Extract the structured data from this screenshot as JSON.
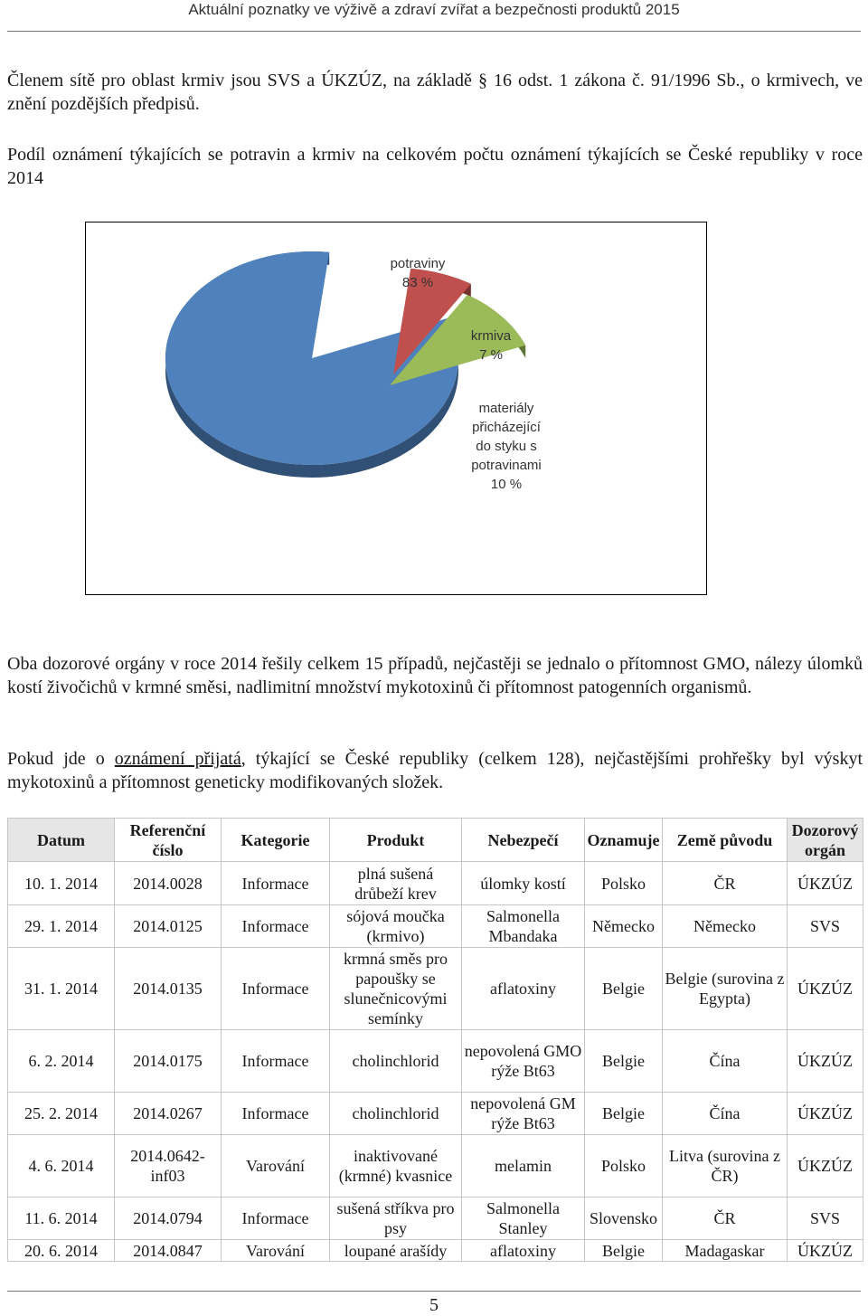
{
  "header": {
    "title": "Aktuální poznatky ve výživě a zdraví zvířat a bezpečnosti produktů 2015"
  },
  "intro": {
    "text": "Členem sítě pro oblast krmiv jsou SVS a ÚKZÚZ, na základě § 16 odst. 1 zákona č. 91/1996 Sb., o krmivech, ve znění pozdějších předpisů."
  },
  "chart_heading": {
    "text": "Podíl oznámení týkajících se potravin a krmiv na celkovém počtu oznámení týkajících se České republiky v roce 2014"
  },
  "chart_data": {
    "type": "pie",
    "title": "",
    "slices": [
      {
        "label_lines": [
          "potraviny",
          "83 %"
        ],
        "value": 83,
        "color": "#4f81bd"
      },
      {
        "label_lines": [
          "krmiva",
          "7 %"
        ],
        "value": 7,
        "color": "#c0504d"
      },
      {
        "label_lines": [
          "materiály",
          "přicházející",
          "do styku s",
          "potravinami",
          "10 %"
        ],
        "value": 10,
        "color": "#9bbb59"
      }
    ]
  },
  "para2": {
    "text": "Oba dozorové orgány v roce 2014 řešily celkem 15 případů, nejčastěji se jednalo o přítomnost GMO, nálezy úlomků kostí živočichů v krmné směsi, nadlimitní množství mykotoxinů či přítomnost patogenních organismů."
  },
  "para3": {
    "before": "Pokud jde o ",
    "underlined": "oznámení přijatá",
    "after": ", týkající se České republiky (celkem 128), nejčastějšími prohřešky byl výskyt mykotoxinů a přítomnost geneticky modifikovaných složek."
  },
  "table": {
    "headers": [
      "Datum",
      "Referenční číslo",
      "Kategorie",
      "Produkt",
      "Nebezpečí",
      "Oznamuje",
      "Země původu",
      "Dozorový orgán"
    ],
    "rows": [
      [
        "10. 1. 2014",
        "2014.0028",
        "Informace",
        "plná sušená drůbeží krev",
        "úlomky kostí",
        "Polsko",
        "ČR",
        "ÚKZÚZ"
      ],
      [
        "29. 1. 2014",
        "2014.0125",
        "Informace",
        "sójová moučka (krmivo)",
        "Salmonella Mbandaka",
        "Německo",
        "Německo",
        "SVS"
      ],
      [
        "31. 1. 2014",
        "2014.0135",
        "Informace",
        "krmná směs pro papoušky se slunečnicovými semínky",
        "aflatoxiny",
        "Belgie",
        "Belgie (surovina z Egypta)",
        "ÚKZÚZ"
      ],
      [
        "6. 2. 2014",
        "2014.0175",
        "Informace",
        "cholinchlorid",
        "nepovolená GMO rýže Bt63",
        "Belgie",
        "Čína",
        "ÚKZÚZ"
      ],
      [
        "25. 2. 2014",
        "2014.0267",
        "Informace",
        "cholinchlorid",
        "nepovolená GM rýže Bt63",
        "Belgie",
        "Čína",
        "ÚKZÚZ"
      ],
      [
        "4. 6. 2014",
        "2014.0642-inf03",
        "Varování",
        "inaktivované (krmné) kvasnice",
        "melamin",
        "Polsko",
        "Litva (surovina z ČR)",
        "ÚKZÚZ"
      ],
      [
        "11. 6. 2014",
        "2014.0794",
        "Informace",
        "sušená stříkva pro psy",
        "Salmonella Stanley",
        "Slovensko",
        "ČR",
        "SVS"
      ],
      [
        "20. 6. 2014",
        "2014.0847",
        "Varování",
        "loupané arašídy",
        "aflatoxiny",
        "Belgie",
        "Madagaskar",
        "ÚKZÚZ"
      ]
    ]
  },
  "footer": {
    "page_number": "5"
  }
}
